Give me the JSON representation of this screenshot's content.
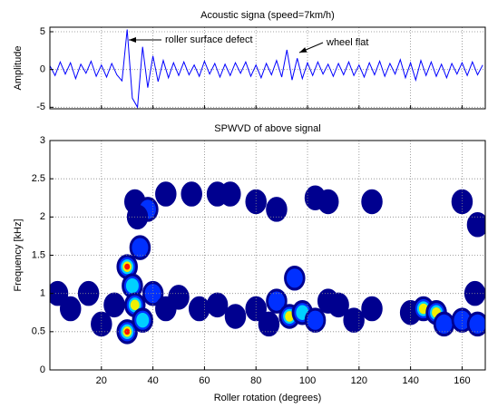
{
  "chart_data": [
    {
      "type": "line",
      "title": "Acoustic signa (speed=7km/h)",
      "ylabel": "Amplitude",
      "color": "#0000ff",
      "x": [
        0,
        2,
        4,
        6,
        8,
        10,
        12,
        14,
        16,
        18,
        20,
        22,
        24,
        26,
        28,
        30,
        32,
        34,
        36,
        38,
        40,
        42,
        44,
        46,
        48,
        50,
        52,
        54,
        56,
        58,
        60,
        62,
        64,
        66,
        68,
        70,
        72,
        74,
        76,
        78,
        80,
        82,
        84,
        86,
        88,
        90,
        92,
        94,
        96,
        98,
        100,
        102,
        104,
        106,
        108,
        110,
        112,
        114,
        116,
        118,
        120,
        122,
        124,
        126,
        128,
        130,
        132,
        134,
        136,
        138,
        140,
        142,
        144,
        146,
        148,
        150,
        152,
        154,
        156,
        158,
        160,
        162,
        164,
        166,
        168
      ],
      "values": [
        0.5,
        -0.8,
        1.0,
        -0.6,
        0.9,
        -1.2,
        0.7,
        -0.5,
        1.1,
        -0.9,
        0.6,
        -1.0,
        0.8,
        -0.7,
        -1.5,
        5.3,
        -3.8,
        -5.0,
        3.0,
        -2.4,
        1.8,
        -1.6,
        1.2,
        -1.1,
        0.9,
        -0.8,
        1.0,
        -0.7,
        0.6,
        -0.9,
        1.1,
        -0.6,
        0.8,
        -1.0,
        0.7,
        -0.8,
        0.9,
        -0.5,
        1.0,
        -0.9,
        0.6,
        -1.1,
        0.8,
        -0.7,
        1.2,
        -1.0,
        2.6,
        -1.4,
        1.5,
        -1.2,
        0.9,
        -0.8,
        1.0,
        -0.6,
        0.7,
        -0.9,
        0.8,
        -0.7,
        1.0,
        -0.8,
        0.6,
        -1.0,
        0.9,
        -0.7,
        1.1,
        -0.9,
        0.8,
        -0.6,
        1.3,
        -1.1,
        0.9,
        -1.4,
        1.2,
        -0.8,
        1.0,
        -0.9,
        0.7,
        -1.1,
        0.8,
        -0.6,
        0.9,
        -0.8,
        1.0,
        -0.7,
        0.6
      ],
      "xlim": [
        0,
        169
      ],
      "xticks": [
        20,
        40,
        60,
        80,
        100,
        120,
        140,
        160
      ],
      "xtick_labels": false,
      "ylim": [
        -5.2,
        5.6
      ],
      "yticks": [
        -5,
        0,
        5
      ],
      "grid": true,
      "annotations": [
        "roller surface defect",
        "wheel flat"
      ]
    },
    {
      "type": "contour",
      "title": "SPWVD of above signal",
      "xlabel": "Roller rotation (degrees)",
      "ylabel": "Frequency [kHz]",
      "colors": [
        "#00008f",
        "#0030ff",
        "#00d0ff",
        "#f0f000",
        "#ff1000"
      ],
      "x": [
        33,
        38,
        34,
        45,
        55,
        65,
        70,
        80,
        88,
        103,
        108,
        125,
        160,
        166,
        3,
        8,
        15,
        20,
        25,
        30,
        32,
        33,
        30,
        36,
        40,
        35,
        45,
        50,
        58,
        65,
        72,
        80,
        85,
        88,
        93,
        98,
        95,
        103,
        108,
        112,
        118,
        125,
        140,
        145,
        150,
        153,
        160,
        165,
        166
      ],
      "y": [
        2.2,
        2.1,
        2.0,
        2.3,
        2.3,
        2.3,
        2.3,
        2.2,
        2.1,
        2.25,
        2.2,
        2.2,
        2.2,
        1.9,
        1.0,
        0.8,
        1.0,
        0.6,
        0.85,
        1.35,
        1.1,
        0.85,
        0.5,
        0.65,
        1.0,
        1.6,
        0.8,
        0.95,
        0.8,
        0.85,
        0.7,
        0.8,
        0.6,
        0.9,
        0.7,
        0.75,
        1.2,
        0.65,
        0.9,
        0.85,
        0.65,
        0.8,
        0.75,
        0.8,
        0.75,
        0.6,
        0.65,
        1.0,
        0.6
      ],
      "intensity": [
        1,
        2,
        1,
        1,
        1,
        1,
        1,
        1,
        1,
        1,
        1,
        1,
        1,
        1,
        1,
        1,
        1,
        1,
        1,
        5,
        3,
        4,
        5,
        3,
        2,
        2,
        1,
        1,
        1,
        1,
        1,
        1,
        1,
        2,
        4,
        3,
        2,
        2,
        1,
        1,
        1,
        1,
        1,
        4,
        4,
        2,
        2,
        1,
        2
      ],
      "xlim": [
        0,
        169
      ],
      "xticks": [
        20,
        40,
        60,
        80,
        100,
        120,
        140,
        160
      ],
      "xtick_labels": true,
      "ylim": [
        0,
        3
      ],
      "yticks": [
        0,
        0.5,
        1,
        1.5,
        2,
        2.5,
        3
      ],
      "grid": true
    }
  ]
}
